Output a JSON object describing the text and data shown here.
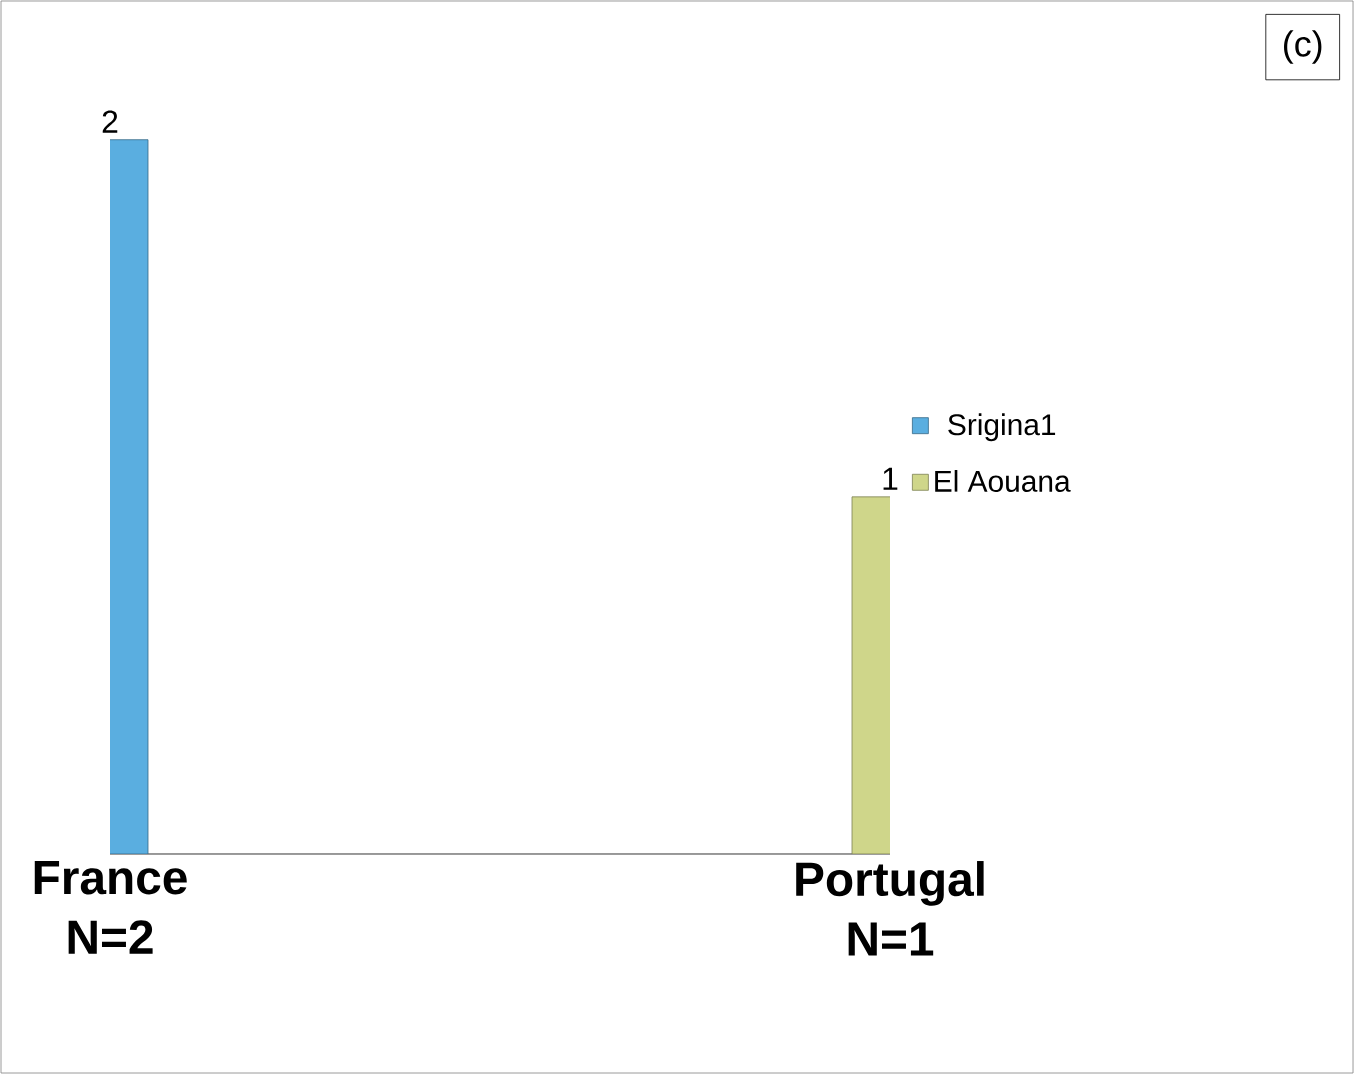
{
  "chart_data": {
    "type": "bar",
    "categories": [
      "France N=2",
      "Portugal N=1"
    ],
    "series": [
      {
        "name": "Srigina1",
        "color": "#5aaee0",
        "values": [
          2,
          null
        ]
      },
      {
        "name": "El Aouana",
        "color": "#cfd68a",
        "values": [
          null,
          1
        ]
      }
    ],
    "data_labels": true,
    "legend": "right",
    "annotations": [
      "(c)"
    ]
  }
}
